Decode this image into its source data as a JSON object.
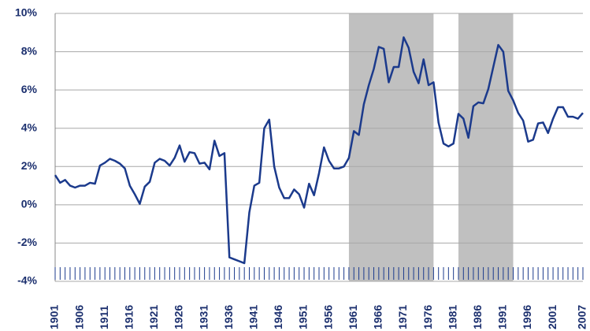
{
  "chart_data": {
    "type": "line",
    "x": [
      1901,
      1902,
      1903,
      1904,
      1905,
      1906,
      1907,
      1908,
      1909,
      1910,
      1911,
      1912,
      1913,
      1914,
      1915,
      1916,
      1917,
      1918,
      1919,
      1920,
      1921,
      1922,
      1923,
      1924,
      1925,
      1926,
      1927,
      1928,
      1929,
      1930,
      1931,
      1932,
      1933,
      1934,
      1935,
      1936,
      1937,
      1938,
      1939,
      1940,
      1941,
      1942,
      1943,
      1944,
      1945,
      1946,
      1947,
      1948,
      1949,
      1950,
      1951,
      1952,
      1953,
      1954,
      1955,
      1956,
      1957,
      1958,
      1959,
      1960,
      1961,
      1962,
      1963,
      1964,
      1965,
      1966,
      1967,
      1968,
      1969,
      1970,
      1971,
      1972,
      1973,
      1974,
      1975,
      1976,
      1977,
      1978,
      1979,
      1980,
      1981,
      1982,
      1983,
      1984,
      1985,
      1986,
      1987,
      1988,
      1989,
      1990,
      1991,
      1992,
      1993,
      1994,
      1995,
      1996,
      1997,
      1998,
      1999,
      2000,
      2001,
      2002,
      2003,
      2004,
      2005,
      2006,
      2007
    ],
    "values": [
      1.55,
      1.15,
      1.3,
      1.0,
      0.9,
      1.0,
      1.0,
      1.15,
      1.1,
      2.05,
      2.2,
      2.4,
      2.3,
      2.15,
      1.9,
      1.0,
      0.55,
      0.05,
      0.95,
      1.2,
      2.2,
      2.4,
      2.3,
      2.05,
      2.45,
      3.1,
      2.25,
      2.75,
      2.7,
      2.15,
      2.2,
      1.85,
      3.35,
      2.55,
      2.7,
      -2.75,
      -2.85,
      -2.95,
      -3.05,
      -0.4,
      1.0,
      1.15,
      4.0,
      4.45,
      2.0,
      0.9,
      0.35,
      0.35,
      0.8,
      0.55,
      -0.15,
      1.1,
      0.5,
      1.65,
      3.0,
      2.3,
      1.9,
      1.9,
      2.0,
      2.45,
      3.85,
      3.65,
      5.25,
      6.25,
      7.1,
      8.25,
      8.15,
      6.4,
      7.2,
      7.2,
      8.75,
      8.2,
      6.95,
      6.35,
      7.6,
      6.25,
      6.4,
      4.3,
      3.2,
      3.05,
      3.2,
      4.75,
      4.5,
      3.5,
      5.15,
      5.35,
      5.3,
      6.05,
      7.2,
      8.35,
      8.0,
      5.95,
      5.45,
      4.8,
      4.4,
      3.3,
      3.4,
      4.25,
      4.3,
      3.75,
      4.5,
      5.1,
      5.1,
      4.6,
      4.6,
      4.5,
      4.8
    ],
    "color": "#1b3a8c",
    "shaded_spans": [
      [
        1960,
        1977
      ],
      [
        1982,
        1993
      ]
    ],
    "shade_color": "#c0c0c0",
    "xlim": [
      1901,
      2007
    ],
    "xticks": [
      1901,
      1906,
      1911,
      1916,
      1921,
      1926,
      1931,
      1936,
      1941,
      1946,
      1951,
      1956,
      1961,
      1966,
      1971,
      1976,
      1981,
      1986,
      1991,
      1996,
      2001,
      2007
    ],
    "ylim": [
      -4,
      10
    ],
    "yticks": [
      {
        "value": -4,
        "label": "-4%"
      },
      {
        "value": -2,
        "label": "-2%"
      },
      {
        "value": 0,
        "label": "0%"
      },
      {
        "value": 2,
        "label": "2%"
      },
      {
        "value": 4,
        "label": "4%"
      },
      {
        "value": 6,
        "label": "6%"
      },
      {
        "value": 8,
        "label": "8%"
      },
      {
        "value": 10,
        "label": "10%"
      }
    ],
    "grid": true
  }
}
